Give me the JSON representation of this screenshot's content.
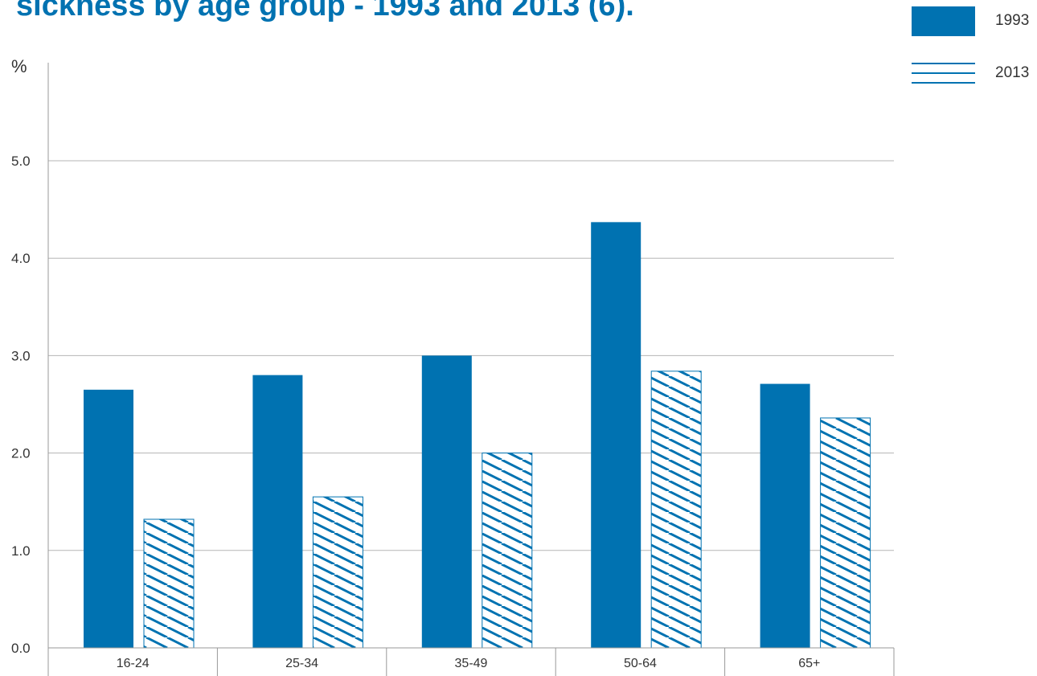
{
  "title": "sickness by age group - 1993 and 2013 (6).",
  "colors": {
    "accent": "#0072b1",
    "grid": "#b5b5b5",
    "axis": "#999999"
  },
  "legend": [
    {
      "label": "1993",
      "style": "solid"
    },
    {
      "label": "2013",
      "style": "hatched"
    }
  ],
  "chart_data": {
    "type": "bar",
    "title": "sickness by age group - 1993 and 2013 (6).",
    "ylabel": "%",
    "xlabel": "",
    "categories": [
      "16-24",
      "25-34",
      "35-49",
      "50-64",
      "65+"
    ],
    "series": [
      {
        "name": "1993",
        "values": [
          2.65,
          2.8,
          3.0,
          4.37,
          2.71
        ]
      },
      {
        "name": "2013",
        "values": [
          1.32,
          1.55,
          2.0,
          2.84,
          2.36
        ]
      }
    ],
    "ylim": [
      0,
      6
    ],
    "yticks": [
      "0.0",
      "1.0",
      "2.0",
      "3.0",
      "4.0",
      "5.0"
    ],
    "ytick_values": [
      0,
      1,
      2,
      3,
      4,
      5
    ],
    "grid": true,
    "legend_position": "top-right"
  }
}
